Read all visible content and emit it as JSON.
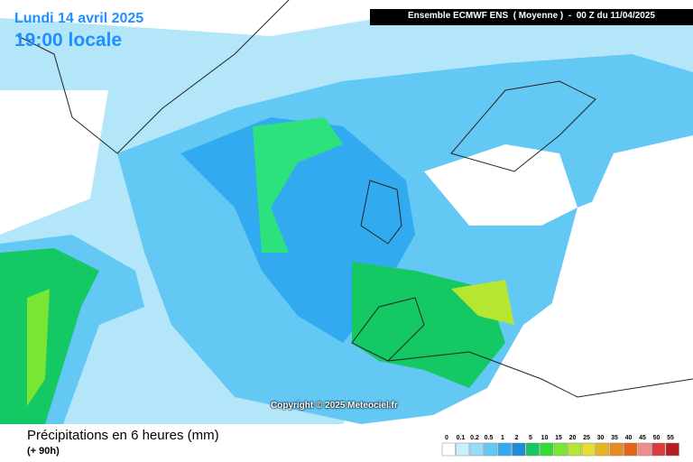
{
  "header": {
    "date": "Lundi 14 avril 2025",
    "time": "19:00 locale",
    "model": "Ensemble ECMWF ENS  ( Moyenne )  -  00 Z du 11/04/2025"
  },
  "copyright": "Copyright © 2025 Meteociel.fr",
  "footer": {
    "title": "Précipitations en 6 heures (mm)",
    "lead": "(+ 90h)"
  },
  "legend": {
    "labels": [
      0,
      0.1,
      0.2,
      0.5,
      1,
      2,
      5,
      10,
      15,
      20,
      25,
      30,
      35,
      40,
      45,
      50,
      55
    ],
    "colors": [
      "#ffffff",
      "#c8f0ff",
      "#96dcfa",
      "#64c8f5",
      "#32aaf0",
      "#1e8cdc",
      "#14c864",
      "#32dc32",
      "#78e632",
      "#b4e632",
      "#e6dc32",
      "#e6b41e",
      "#e68c1e",
      "#e66414",
      "#f08c8c",
      "#dc3c3c",
      "#b41e1e"
    ]
  }
}
